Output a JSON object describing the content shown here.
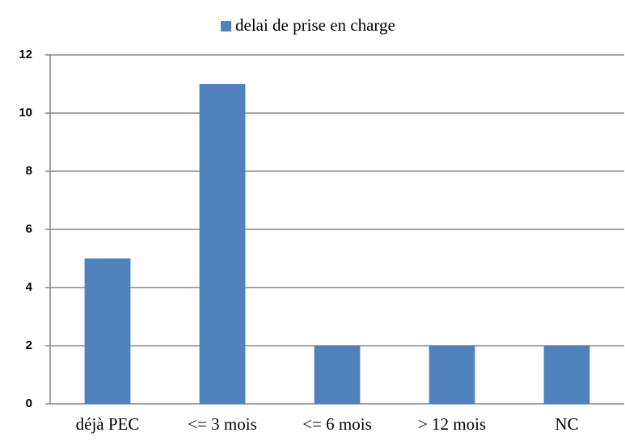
{
  "chart_data": {
    "type": "bar",
    "categories": [
      "déjà PEC",
      "<= 3 mois",
      "<= 6 mois",
      "> 12 mois",
      "NC"
    ],
    "series": [
      {
        "name": "delai de prise en charge",
        "color": "#4f81bd",
        "values": [
          5,
          11,
          2,
          2,
          2
        ]
      }
    ],
    "ylim": [
      0,
      12
    ],
    "yticks": [
      0,
      2,
      4,
      6,
      8,
      10,
      12
    ],
    "grid": true,
    "legend": "top"
  }
}
